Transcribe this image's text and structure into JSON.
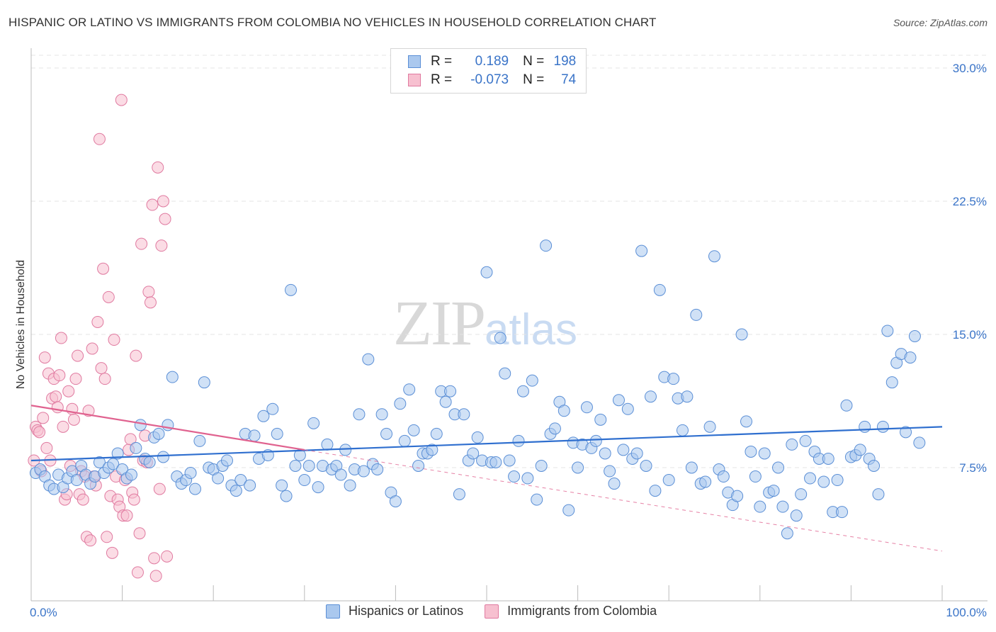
{
  "title": "HISPANIC OR LATINO VS IMMIGRANTS FROM COLOMBIA NO VEHICLES IN HOUSEHOLD CORRELATION CHART",
  "source": "Source: ZipAtlas.com",
  "watermark": {
    "zip": "ZIP",
    "atlas": "atlas"
  },
  "legend": {
    "rows": [
      {
        "r_label": "R =",
        "r_value": "0.189",
        "n_label": "N =",
        "n_value": "198",
        "color": "#aac8ee",
        "border": "#5b8fd6"
      },
      {
        "r_label": "R =",
        "r_value": "-0.073",
        "n_label": "N =",
        "n_value": "74",
        "color": "#f7c0d0",
        "border": "#e07aa0"
      }
    ]
  },
  "bottom_legend": [
    {
      "label": "Hispanics or Latinos",
      "color": "#aac8ee",
      "border": "#5b8fd6"
    },
    {
      "label": "Immigrants from Colombia",
      "color": "#f7c0d0",
      "border": "#e07aa0"
    }
  ],
  "chart_data": {
    "type": "scatter",
    "title": "HISPANIC OR LATINO VS IMMIGRANTS FROM COLOMBIA NO VEHICLES IN HOUSEHOLD CORRELATION CHART",
    "xlabel": "",
    "ylabel": "No Vehicles in Household",
    "xlim": [
      0,
      100
    ],
    "ylim": [
      0,
      30
    ],
    "x_tick_labels": [
      "0.0%",
      "100.0%"
    ],
    "y_ticks": [
      7.5,
      15.0,
      22.5,
      30.0
    ],
    "y_tick_labels": [
      "7.5%",
      "15.0%",
      "22.5%",
      "30.0%"
    ],
    "grid": true,
    "series": [
      {
        "name": "Hispanics or Latinos",
        "color": "#aac8ee",
        "stroke": "#5b8fd6",
        "trend": {
          "x": [
            0,
            100
          ],
          "y": [
            7.9,
            9.8
          ],
          "style": "solid",
          "color": "#2f6fcf"
        },
        "points": [
          [
            0.5,
            7.2
          ],
          [
            1,
            7.4
          ],
          [
            1.5,
            7.0
          ],
          [
            2,
            6.5
          ],
          [
            2.5,
            6.3
          ],
          [
            3,
            7.1
          ],
          [
            3.5,
            6.4
          ],
          [
            4,
            6.9
          ],
          [
            4.5,
            7.3
          ],
          [
            5,
            6.8
          ],
          [
            5.5,
            7.6
          ],
          [
            6,
            7.1
          ],
          [
            6.5,
            6.6
          ],
          [
            7,
            7.0
          ],
          [
            7.5,
            7.8
          ],
          [
            8,
            7.2
          ],
          [
            8.5,
            7.5
          ],
          [
            9,
            7.7
          ],
          [
            9.5,
            8.3
          ],
          [
            10,
            7.4
          ],
          [
            10.5,
            6.9
          ],
          [
            11,
            7.1
          ],
          [
            11.5,
            8.6
          ],
          [
            12,
            9.9
          ],
          [
            12.5,
            8.0
          ],
          [
            13,
            7.8
          ],
          [
            13.5,
            9.2
          ],
          [
            14,
            9.4
          ],
          [
            14.5,
            8.1
          ],
          [
            15,
            9.9
          ],
          [
            15.5,
            12.6
          ],
          [
            16,
            7.0
          ],
          [
            16.5,
            6.6
          ],
          [
            17,
            6.8
          ],
          [
            17.5,
            7.2
          ],
          [
            18,
            6.3
          ],
          [
            18.5,
            9.0
          ],
          [
            19,
            12.3
          ],
          [
            19.5,
            7.5
          ],
          [
            20,
            7.4
          ],
          [
            20.5,
            6.9
          ],
          [
            21,
            7.6
          ],
          [
            21.5,
            7.9
          ],
          [
            22,
            6.5
          ],
          [
            22.5,
            6.2
          ],
          [
            23,
            6.8
          ],
          [
            23.5,
            9.4
          ],
          [
            24,
            6.5
          ],
          [
            24.5,
            9.3
          ],
          [
            25,
            8.0
          ],
          [
            25.5,
            10.4
          ],
          [
            26,
            8.2
          ],
          [
            26.5,
            10.8
          ],
          [
            27,
            9.4
          ],
          [
            27.5,
            6.5
          ],
          [
            28,
            5.9
          ],
          [
            28.5,
            17.5
          ],
          [
            29,
            7.6
          ],
          [
            29.5,
            8.2
          ],
          [
            30,
            6.8
          ],
          [
            30.5,
            7.6
          ],
          [
            31,
            10.0
          ],
          [
            31.5,
            6.4
          ],
          [
            32,
            7.6
          ],
          [
            32.5,
            8.8
          ],
          [
            33,
            7.4
          ],
          [
            33.5,
            7.6
          ],
          [
            34,
            7.1
          ],
          [
            34.5,
            8.5
          ],
          [
            35,
            6.5
          ],
          [
            35.5,
            7.4
          ],
          [
            36,
            10.5
          ],
          [
            36.5,
            7.3
          ],
          [
            37,
            13.6
          ],
          [
            37.5,
            7.7
          ],
          [
            38,
            7.4
          ],
          [
            38.5,
            10.5
          ],
          [
            39,
            9.4
          ],
          [
            39.5,
            6.1
          ],
          [
            40,
            5.6
          ],
          [
            40.5,
            11.1
          ],
          [
            41,
            9.0
          ],
          [
            41.5,
            11.9
          ],
          [
            42,
            9.6
          ],
          [
            42.5,
            7.6
          ],
          [
            43,
            8.3
          ],
          [
            43.5,
            8.3
          ],
          [
            44,
            8.5
          ],
          [
            44.5,
            9.4
          ],
          [
            45,
            11.8
          ],
          [
            45.5,
            11.2
          ],
          [
            46,
            11.8
          ],
          [
            46.5,
            10.5
          ],
          [
            47,
            6.0
          ],
          [
            47.5,
            10.5
          ],
          [
            48,
            7.9
          ],
          [
            48.5,
            8.3
          ],
          [
            49,
            9.2
          ],
          [
            49.5,
            7.9
          ],
          [
            50,
            18.5
          ],
          [
            50.5,
            7.8
          ],
          [
            51,
            7.8
          ],
          [
            51.5,
            14.8
          ],
          [
            52,
            12.8
          ],
          [
            52.5,
            7.9
          ],
          [
            53,
            7.0
          ],
          [
            53.5,
            9.0
          ],
          [
            54,
            11.8
          ],
          [
            54.5,
            6.9
          ],
          [
            55,
            12.4
          ],
          [
            55.5,
            5.7
          ],
          [
            56,
            7.6
          ],
          [
            56.5,
            20.0
          ],
          [
            57,
            9.4
          ],
          [
            57.5,
            9.7
          ],
          [
            58,
            11.2
          ],
          [
            58.5,
            10.7
          ],
          [
            59,
            5.1
          ],
          [
            59.5,
            8.9
          ],
          [
            60,
            7.5
          ],
          [
            60.5,
            8.8
          ],
          [
            61,
            10.9
          ],
          [
            61.5,
            8.6
          ],
          [
            62,
            9.0
          ],
          [
            62.5,
            10.2
          ],
          [
            63,
            8.3
          ],
          [
            63.5,
            7.3
          ],
          [
            64,
            6.6
          ],
          [
            64.5,
            11.3
          ],
          [
            65,
            8.5
          ],
          [
            65.5,
            10.8
          ],
          [
            66,
            8.0
          ],
          [
            66.5,
            8.3
          ],
          [
            67,
            19.7
          ],
          [
            67.5,
            7.6
          ],
          [
            68,
            11.5
          ],
          [
            68.5,
            6.2
          ],
          [
            69,
            17.5
          ],
          [
            69.5,
            12.6
          ],
          [
            70,
            6.8
          ],
          [
            70.5,
            12.5
          ],
          [
            71,
            11.4
          ],
          [
            71.5,
            9.6
          ],
          [
            72,
            11.5
          ],
          [
            72.5,
            7.5
          ],
          [
            73,
            16.1
          ],
          [
            73.5,
            6.6
          ],
          [
            74,
            6.7
          ],
          [
            74.5,
            9.8
          ],
          [
            75,
            19.4
          ],
          [
            75.5,
            7.4
          ],
          [
            76,
            7.0
          ],
          [
            76.5,
            6.1
          ],
          [
            77,
            5.4
          ],
          [
            77.5,
            5.9
          ],
          [
            78,
            15.0
          ],
          [
            78.5,
            10.1
          ],
          [
            79,
            8.4
          ],
          [
            79.5,
            7.0
          ],
          [
            80,
            5.3
          ],
          [
            80.5,
            8.3
          ],
          [
            81,
            6.1
          ],
          [
            81.5,
            6.2
          ],
          [
            82,
            7.5
          ],
          [
            82.5,
            5.3
          ],
          [
            83,
            3.8
          ],
          [
            83.5,
            8.8
          ],
          [
            84,
            4.8
          ],
          [
            84.5,
            6.0
          ],
          [
            85,
            9.0
          ],
          [
            85.5,
            6.9
          ],
          [
            86,
            8.4
          ],
          [
            86.5,
            8.0
          ],
          [
            87,
            6.7
          ],
          [
            87.5,
            8.0
          ],
          [
            88,
            5.0
          ],
          [
            88.5,
            6.8
          ],
          [
            89,
            5.0
          ],
          [
            89.5,
            11.0
          ],
          [
            90,
            8.1
          ],
          [
            90.5,
            8.2
          ],
          [
            91,
            8.5
          ],
          [
            91.5,
            9.8
          ],
          [
            92,
            8.0
          ],
          [
            92.5,
            7.6
          ],
          [
            93,
            6.0
          ],
          [
            93.5,
            9.8
          ],
          [
            94,
            15.2
          ],
          [
            94.5,
            12.3
          ],
          [
            95,
            13.4
          ],
          [
            95.5,
            13.9
          ],
          [
            96,
            9.5
          ],
          [
            96.5,
            13.7
          ],
          [
            97,
            14.9
          ],
          [
            97.5,
            8.9
          ]
        ]
      },
      {
        "name": "Immigrants from Colombia",
        "color": "#f7c0d0",
        "stroke": "#e07aa0",
        "trend": {
          "x": [
            0,
            30
          ],
          "y": [
            11.0,
            8.5
          ],
          "style": "solid",
          "color": "#e0628f",
          "extend_to": [
            100,
            2.8
          ]
        },
        "points": [
          [
            0.3,
            7.9
          ],
          [
            0.5,
            9.8
          ],
          [
            0.7,
            9.6
          ],
          [
            0.9,
            9.5
          ],
          [
            1.1,
            7.3
          ],
          [
            1.3,
            10.3
          ],
          [
            1.5,
            13.7
          ],
          [
            1.7,
            8.6
          ],
          [
            1.9,
            12.8
          ],
          [
            2.1,
            7.9
          ],
          [
            2.3,
            11.4
          ],
          [
            2.5,
            12.5
          ],
          [
            2.7,
            11.5
          ],
          [
            2.9,
            10.9
          ],
          [
            3.1,
            12.7
          ],
          [
            3.3,
            14.8
          ],
          [
            3.5,
            9.8
          ],
          [
            3.7,
            5.7
          ],
          [
            3.9,
            6.0
          ],
          [
            4.1,
            11.8
          ],
          [
            4.3,
            7.6
          ],
          [
            4.5,
            10.8
          ],
          [
            4.7,
            10.2
          ],
          [
            4.9,
            12.5
          ],
          [
            5.1,
            13.8
          ],
          [
            5.3,
            6.0
          ],
          [
            5.5,
            7.3
          ],
          [
            5.7,
            5.7
          ],
          [
            5.9,
            7.0
          ],
          [
            6.1,
            3.6
          ],
          [
            6.3,
            10.7
          ],
          [
            6.5,
            3.4
          ],
          [
            6.7,
            14.2
          ],
          [
            6.9,
            7.0
          ],
          [
            7.1,
            6.5
          ],
          [
            7.3,
            15.7
          ],
          [
            7.5,
            26.0
          ],
          [
            7.7,
            13.1
          ],
          [
            7.9,
            18.7
          ],
          [
            8.1,
            12.5
          ],
          [
            8.3,
            3.6
          ],
          [
            8.5,
            17.1
          ],
          [
            8.7,
            5.9
          ],
          [
            8.9,
            2.7
          ],
          [
            9.1,
            14.7
          ],
          [
            9.3,
            7.0
          ],
          [
            9.5,
            5.7
          ],
          [
            9.7,
            5.3
          ],
          [
            9.9,
            28.2
          ],
          [
            10.1,
            4.8
          ],
          [
            10.3,
            6.8
          ],
          [
            10.5,
            4.8
          ],
          [
            10.7,
            8.5
          ],
          [
            10.9,
            9.1
          ],
          [
            11.1,
            6.1
          ],
          [
            11.3,
            5.7
          ],
          [
            11.5,
            13.8
          ],
          [
            11.7,
            1.6
          ],
          [
            11.9,
            3.8
          ],
          [
            12.1,
            20.1
          ],
          [
            12.3,
            7.9
          ],
          [
            12.5,
            9.3
          ],
          [
            12.7,
            7.8
          ],
          [
            12.9,
            17.4
          ],
          [
            13.1,
            16.8
          ],
          [
            13.3,
            22.3
          ],
          [
            13.5,
            2.4
          ],
          [
            13.7,
            1.4
          ],
          [
            13.9,
            24.4
          ],
          [
            14.1,
            6.3
          ],
          [
            14.3,
            20.0
          ],
          [
            14.5,
            22.5
          ],
          [
            14.7,
            21.5
          ],
          [
            14.9,
            2.5
          ]
        ]
      }
    ]
  }
}
